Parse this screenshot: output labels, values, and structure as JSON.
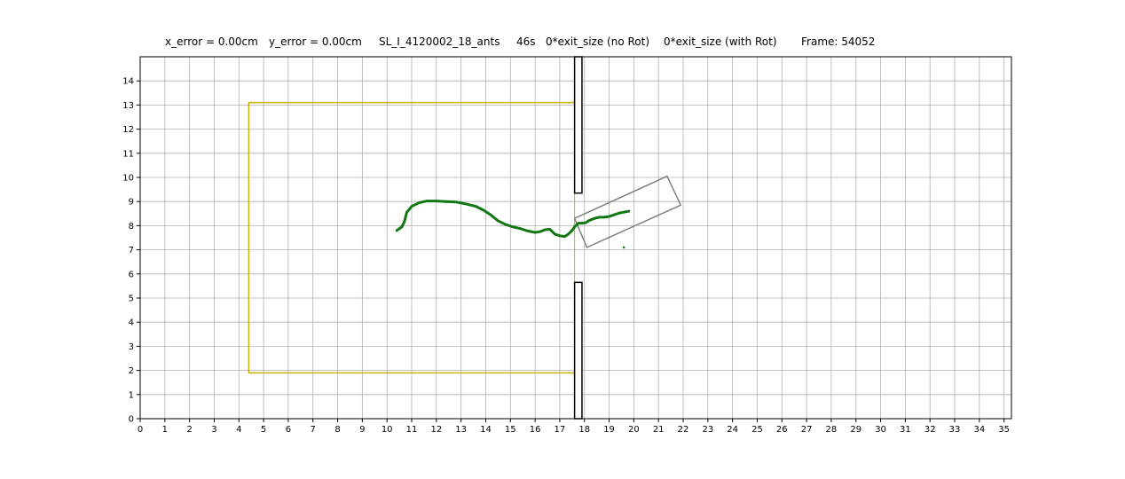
{
  "chart_data": {
    "type": "line",
    "title_parts": [
      "x_error = 0.00cm",
      "y_error = 0.00cm",
      "SL_I_4120002_18_ants",
      "46s",
      "0*exit_size  (no Rot)",
      "0*exit_size  (with Rot)",
      "Frame:    54052"
    ],
    "xlim": [
      0,
      35.3
    ],
    "ylim": [
      0,
      15
    ],
    "x_ticks": [
      0,
      1,
      2,
      3,
      4,
      5,
      6,
      7,
      8,
      9,
      10,
      11,
      12,
      13,
      14,
      15,
      16,
      17,
      18,
      19,
      20,
      21,
      22,
      23,
      24,
      25,
      26,
      27,
      28,
      29,
      30,
      31,
      32,
      33,
      34,
      35
    ],
    "y_ticks": [
      0,
      1,
      2,
      3,
      4,
      5,
      6,
      7,
      8,
      9,
      10,
      11,
      12,
      13,
      14
    ],
    "grid": true,
    "colors": {
      "trajectory": "#117711",
      "shape": "#c8b400",
      "load": "#808080",
      "wall": "#000000",
      "grid": "#b0b0b0"
    },
    "shape_outline": {
      "x": [
        17.6,
        4.4,
        4.4,
        17.6
      ],
      "y": [
        13.1,
        13.1,
        1.9,
        1.9
      ]
    },
    "slit_line": {
      "x": [
        17.6,
        17.6
      ],
      "y": [
        1.9,
        13.1
      ]
    },
    "walls": [
      {
        "x0": 17.6,
        "x1": 17.9,
        "y0": 9.35,
        "y1": 15.0
      },
      {
        "x0": 17.6,
        "x1": 17.9,
        "y0": 0.0,
        "y1": 5.65
      }
    ],
    "load_corners": {
      "x": [
        17.6,
        21.35,
        21.9,
        18.1
      ],
      "y": [
        8.3,
        10.05,
        8.85,
        7.1
      ]
    },
    "trajectory": {
      "x": [
        10.4,
        10.6,
        10.7,
        10.8,
        11.0,
        11.3,
        11.6,
        12.0,
        12.4,
        12.8,
        13.2,
        13.6,
        13.9,
        14.2,
        14.5,
        14.8,
        15.1,
        15.4,
        15.7,
        16.0,
        16.2,
        16.4,
        16.6,
        16.8,
        17.0,
        17.2,
        17.35,
        17.5,
        17.6,
        17.75,
        17.9,
        18.05,
        18.2,
        18.4,
        18.6,
        18.8,
        19.0,
        19.2,
        19.4,
        19.6,
        19.8
      ],
      "y": [
        7.8,
        7.95,
        8.15,
        8.55,
        8.8,
        8.95,
        9.02,
        9.02,
        9.0,
        8.98,
        8.9,
        8.8,
        8.65,
        8.45,
        8.2,
        8.05,
        7.95,
        7.88,
        7.78,
        7.72,
        7.75,
        7.83,
        7.85,
        7.65,
        7.58,
        7.55,
        7.65,
        7.8,
        7.95,
        8.1,
        8.1,
        8.12,
        8.22,
        8.3,
        8.35,
        8.35,
        8.38,
        8.45,
        8.52,
        8.56,
        8.6
      ]
    },
    "stray_point": {
      "x": 19.6,
      "y": 7.1
    }
  }
}
